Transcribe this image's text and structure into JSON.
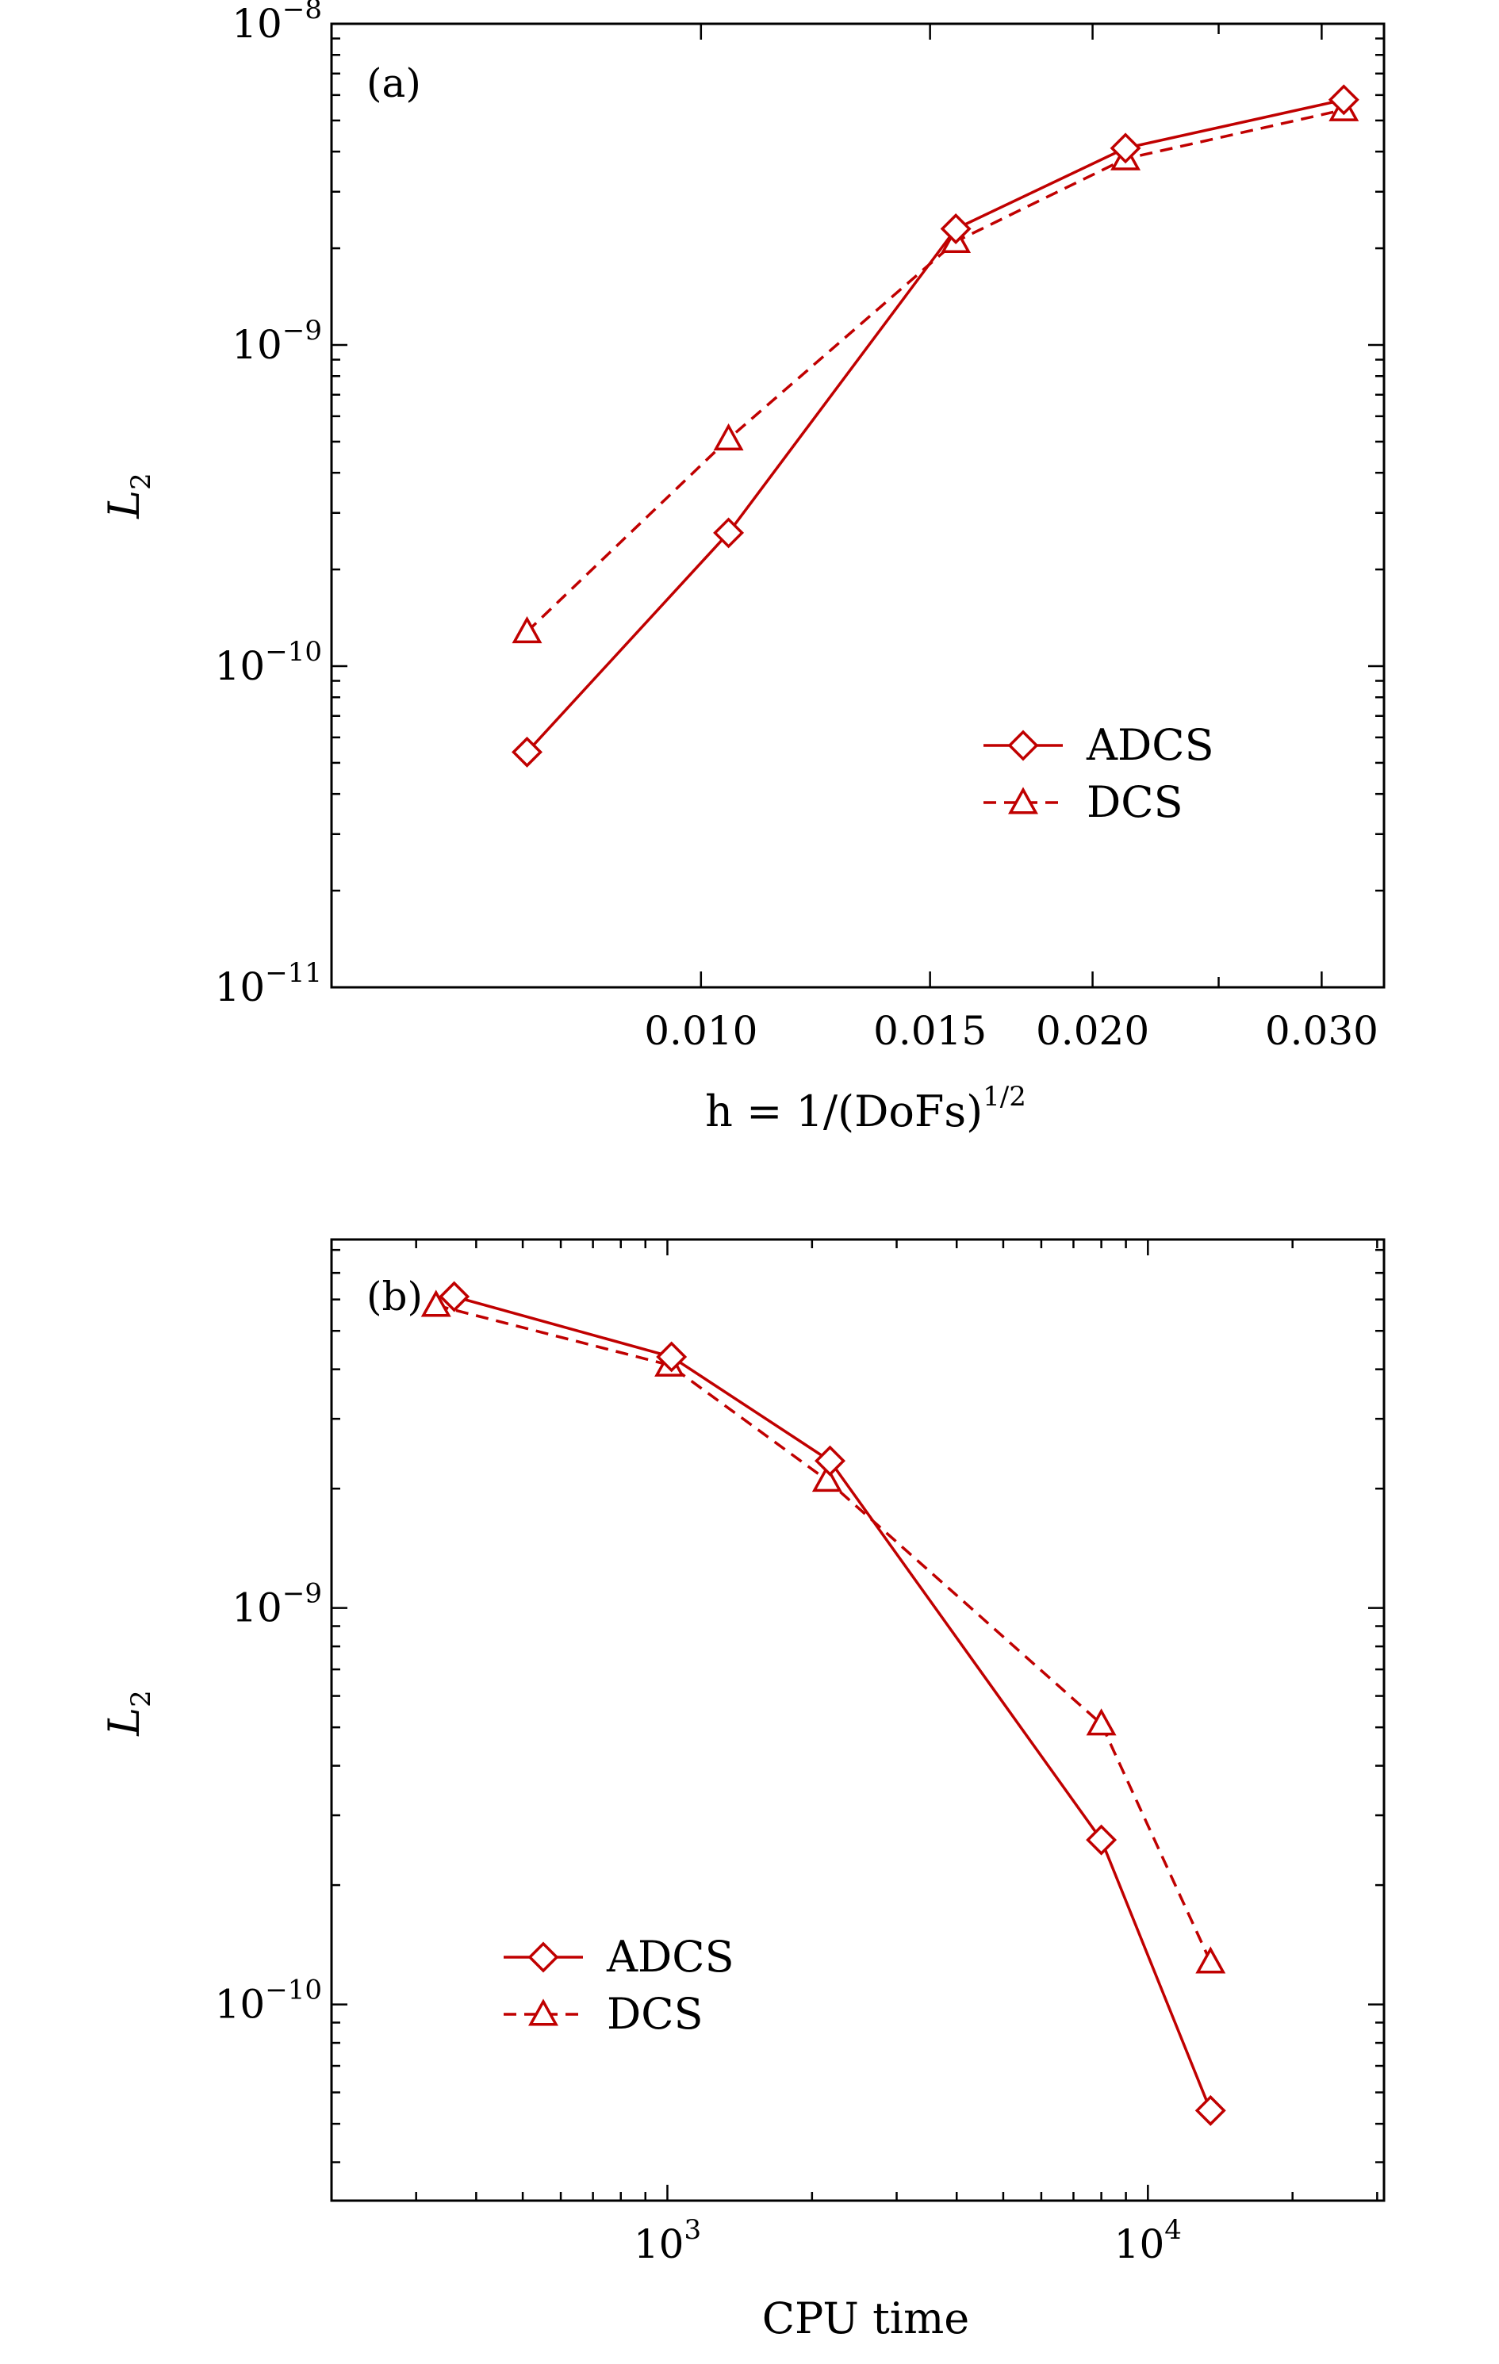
{
  "chart_data": [
    {
      "id": "a",
      "type": "line",
      "panel_label": "(a)",
      "xlabel": "h = 1/(DoFs)^{1/2}",
      "xlabel_parts": {
        "main": "h = 1/(DoFs)",
        "sup": "1/2"
      },
      "ylabel": "L_2",
      "ylabel_parts": {
        "main": "L",
        "sub": "2"
      },
      "xscale": "log",
      "yscale": "log",
      "xlim": [
        0.0052,
        0.0335
      ],
      "ylim": [
        1e-11,
        1e-08
      ],
      "xticks": [
        {
          "value": 0.01,
          "label": "0.010"
        },
        {
          "value": 0.015,
          "label": "0.015"
        },
        {
          "value": 0.02,
          "label": "0.020"
        },
        {
          "value": 0.03,
          "label": "0.030"
        }
      ],
      "xticks_minor": [
        0.025
      ],
      "yticks": [
        {
          "value": 1e-08,
          "base": "10",
          "exp": "−8"
        },
        {
          "value": 1e-09,
          "base": "10",
          "exp": "−9"
        },
        {
          "value": 1e-10,
          "base": "10",
          "exp": "−10"
        },
        {
          "value": 1e-11,
          "base": "10",
          "exp": "−11"
        }
      ],
      "legend_position": "lower-right",
      "series": [
        {
          "name": "ADCS",
          "style": "solid",
          "marker": "diamond",
          "x": [
            0.00735,
            0.0105,
            0.0157,
            0.0212,
            0.0312
          ],
          "y": [
            5.4e-11,
            2.6e-10,
            2.3e-09,
            4.1e-09,
            5.8e-09
          ]
        },
        {
          "name": "DCS",
          "style": "dashed",
          "marker": "triangle",
          "x": [
            0.00735,
            0.0105,
            0.0157,
            0.0212,
            0.0312
          ],
          "y": [
            1.28e-10,
            5.1e-10,
            2.1e-09,
            3.8e-09,
            5.4e-09
          ]
        }
      ]
    },
    {
      "id": "b",
      "type": "line",
      "panel_label": "(b)",
      "xlabel": "CPU time",
      "xlabel_parts": {
        "main": "CPU time",
        "sup": ""
      },
      "ylabel": "L_2",
      "ylabel_parts": {
        "main": "L",
        "sub": "2"
      },
      "xscale": "log",
      "yscale": "log",
      "xlim": [
        200,
        31000
      ],
      "ylim": [
        3.2e-11,
        8.5e-09
      ],
      "xticks": [
        {
          "value": 1000,
          "base": "10",
          "exp": "3"
        },
        {
          "value": 10000,
          "base": "10",
          "exp": "4"
        }
      ],
      "yticks": [
        {
          "value": 1e-09,
          "base": "10",
          "exp": "−9"
        },
        {
          "value": 1e-10,
          "base": "10",
          "exp": "−10"
        }
      ],
      "legend_position": "lower-left",
      "series": [
        {
          "name": "ADCS",
          "style": "solid",
          "marker": "diamond",
          "x": [
            360,
            1020,
            2180,
            8000,
            13500
          ],
          "y": [
            6.1e-09,
            4.3e-09,
            2.35e-09,
            2.6e-10,
            5.4e-11
          ]
        },
        {
          "name": "DCS",
          "style": "dashed",
          "marker": "triangle",
          "x": [
            330,
            1010,
            2150,
            8000,
            13500
          ],
          "y": [
            5.8e-09,
            4.1e-09,
            2.1e-09,
            5.1e-10,
            1.28e-10
          ]
        }
      ]
    }
  ]
}
